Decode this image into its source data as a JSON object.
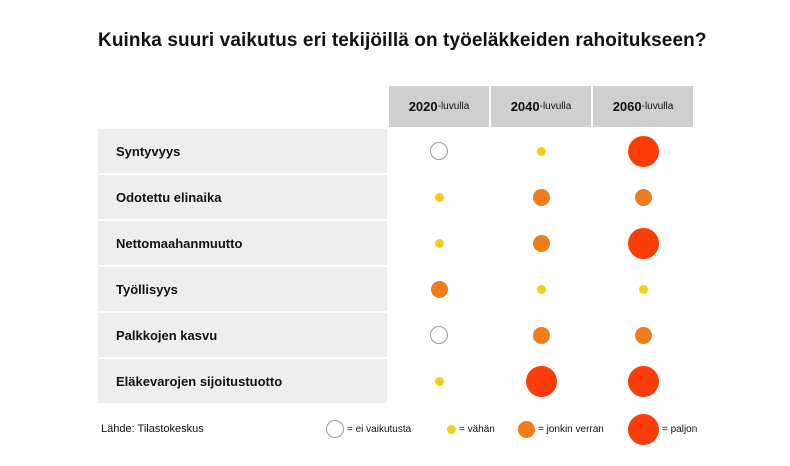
{
  "chart_data": {
    "type": "table",
    "title": "Kuinka suuri vaikutus eri tekijöillä on työeläkkeiden rahoitukseen?",
    "columns": [
      {
        "number": "2020",
        "suffix": "-luvulla"
      },
      {
        "number": "2040",
        "suffix": "-luvulla"
      },
      {
        "number": "2060",
        "suffix": "-luvulla"
      }
    ],
    "rows": [
      {
        "label": "Syntyvyys",
        "values": [
          0,
          1,
          3
        ]
      },
      {
        "label": "Odotettu elinaika",
        "values": [
          1,
          2,
          2
        ]
      },
      {
        "label": "Nettomaahanmuutto",
        "values": [
          1,
          2,
          3
        ]
      },
      {
        "label": "Työllisyys",
        "values": [
          2,
          1,
          1
        ]
      },
      {
        "label": "Palkkojen kasvu",
        "values": [
          0,
          2,
          2
        ]
      },
      {
        "label": "Eläkevarojen sijoitustuotto",
        "values": [
          1,
          3,
          3
        ]
      }
    ],
    "legend": [
      {
        "level": 0,
        "label": "= ei vaikutusta"
      },
      {
        "level": 1,
        "label": "= vähän"
      },
      {
        "level": 2,
        "label": "= jonkin verran"
      },
      {
        "level": 3,
        "label": "= paljon"
      }
    ],
    "colors": {
      "level1": "#f2cf14",
      "level2": "#f07c1a",
      "level3": "#fc3d0a",
      "level0_stroke": "#9a9a9a"
    }
  },
  "source": "Lähde: Tilastokeskus"
}
